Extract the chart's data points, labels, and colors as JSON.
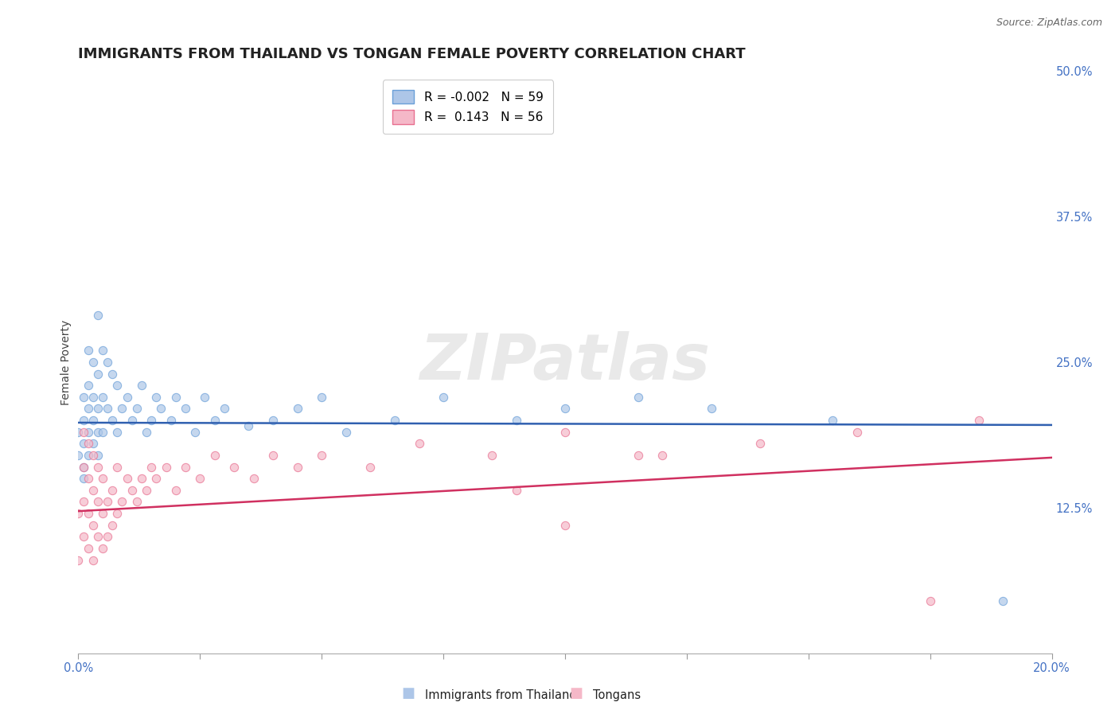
{
  "title": "IMMIGRANTS FROM THAILAND VS TONGAN FEMALE POVERTY CORRELATION CHART",
  "source": "Source: ZipAtlas.com",
  "ylabel": "Female Poverty",
  "right_yticks": [
    0.0,
    0.125,
    0.25,
    0.375,
    0.5
  ],
  "right_yticklabels": [
    "",
    "12.5%",
    "25.0%",
    "37.5%",
    "50.0%"
  ],
  "legend_entries": [
    {
      "label": "R = -0.002   N = 59",
      "color": "#adc6e8",
      "edge": "#6a9fd8"
    },
    {
      "label": "R =  0.143   N = 56",
      "color": "#f5b8c8",
      "edge": "#e87090"
    }
  ],
  "legend_label1": "Immigrants from Thailand",
  "legend_label2": "Tongans",
  "watermark": "ZIPatlas",
  "scatter_thailand": {
    "x": [
      0.0,
      0.0,
      0.001,
      0.001,
      0.001,
      0.001,
      0.001,
      0.002,
      0.002,
      0.002,
      0.002,
      0.002,
      0.003,
      0.003,
      0.003,
      0.003,
      0.004,
      0.004,
      0.004,
      0.004,
      0.004,
      0.005,
      0.005,
      0.005,
      0.006,
      0.006,
      0.007,
      0.007,
      0.008,
      0.008,
      0.009,
      0.01,
      0.011,
      0.012,
      0.013,
      0.014,
      0.015,
      0.016,
      0.017,
      0.019,
      0.02,
      0.022,
      0.024,
      0.026,
      0.028,
      0.03,
      0.035,
      0.04,
      0.045,
      0.05,
      0.055,
      0.065,
      0.075,
      0.09,
      0.1,
      0.115,
      0.13,
      0.155,
      0.19
    ],
    "y": [
      0.17,
      0.19,
      0.16,
      0.18,
      0.2,
      0.22,
      0.15,
      0.17,
      0.19,
      0.21,
      0.23,
      0.26,
      0.18,
      0.2,
      0.22,
      0.25,
      0.17,
      0.19,
      0.21,
      0.24,
      0.29,
      0.19,
      0.22,
      0.26,
      0.21,
      0.25,
      0.2,
      0.24,
      0.19,
      0.23,
      0.21,
      0.22,
      0.2,
      0.21,
      0.23,
      0.19,
      0.2,
      0.22,
      0.21,
      0.2,
      0.22,
      0.21,
      0.19,
      0.22,
      0.2,
      0.21,
      0.195,
      0.2,
      0.21,
      0.22,
      0.19,
      0.2,
      0.22,
      0.2,
      0.21,
      0.22,
      0.21,
      0.2,
      0.045
    ],
    "color": "#adc6e8",
    "edge_color": "#6a9fd8",
    "marker_size": 55,
    "alpha": 0.7
  },
  "scatter_tongans": {
    "x": [
      0.0,
      0.0,
      0.001,
      0.001,
      0.001,
      0.001,
      0.002,
      0.002,
      0.002,
      0.002,
      0.003,
      0.003,
      0.003,
      0.003,
      0.004,
      0.004,
      0.004,
      0.005,
      0.005,
      0.005,
      0.006,
      0.006,
      0.007,
      0.007,
      0.008,
      0.008,
      0.009,
      0.01,
      0.011,
      0.012,
      0.013,
      0.014,
      0.015,
      0.016,
      0.018,
      0.02,
      0.022,
      0.025,
      0.028,
      0.032,
      0.036,
      0.04,
      0.045,
      0.05,
      0.06,
      0.07,
      0.085,
      0.1,
      0.12,
      0.14,
      0.16,
      0.185,
      0.09,
      0.115,
      0.1,
      0.175
    ],
    "y": [
      0.12,
      0.08,
      0.1,
      0.13,
      0.16,
      0.19,
      0.09,
      0.12,
      0.15,
      0.18,
      0.08,
      0.11,
      0.14,
      0.17,
      0.1,
      0.13,
      0.16,
      0.09,
      0.12,
      0.15,
      0.1,
      0.13,
      0.11,
      0.14,
      0.12,
      0.16,
      0.13,
      0.15,
      0.14,
      0.13,
      0.15,
      0.14,
      0.16,
      0.15,
      0.16,
      0.14,
      0.16,
      0.15,
      0.17,
      0.16,
      0.15,
      0.17,
      0.16,
      0.17,
      0.16,
      0.18,
      0.17,
      0.19,
      0.17,
      0.18,
      0.19,
      0.2,
      0.14,
      0.17,
      0.11,
      0.045
    ],
    "color": "#f5b8c8",
    "edge_color": "#e87090",
    "marker_size": 55,
    "alpha": 0.7
  },
  "trend_thailand": {
    "x": [
      0.0,
      0.2
    ],
    "y": [
      0.198,
      0.196
    ],
    "color": "#3060b0",
    "linewidth": 1.8
  },
  "trend_tongans": {
    "x": [
      0.0,
      0.2
    ],
    "y": [
      0.122,
      0.168
    ],
    "color": "#d03060",
    "linewidth": 1.8
  },
  "xlim": [
    0.0,
    0.2
  ],
  "ylim": [
    0.0,
    0.5
  ],
  "background_color": "#ffffff",
  "grid_color": "#cccccc",
  "title_fontsize": 13,
  "axis_label_fontsize": 10,
  "tick_fontsize": 10.5
}
